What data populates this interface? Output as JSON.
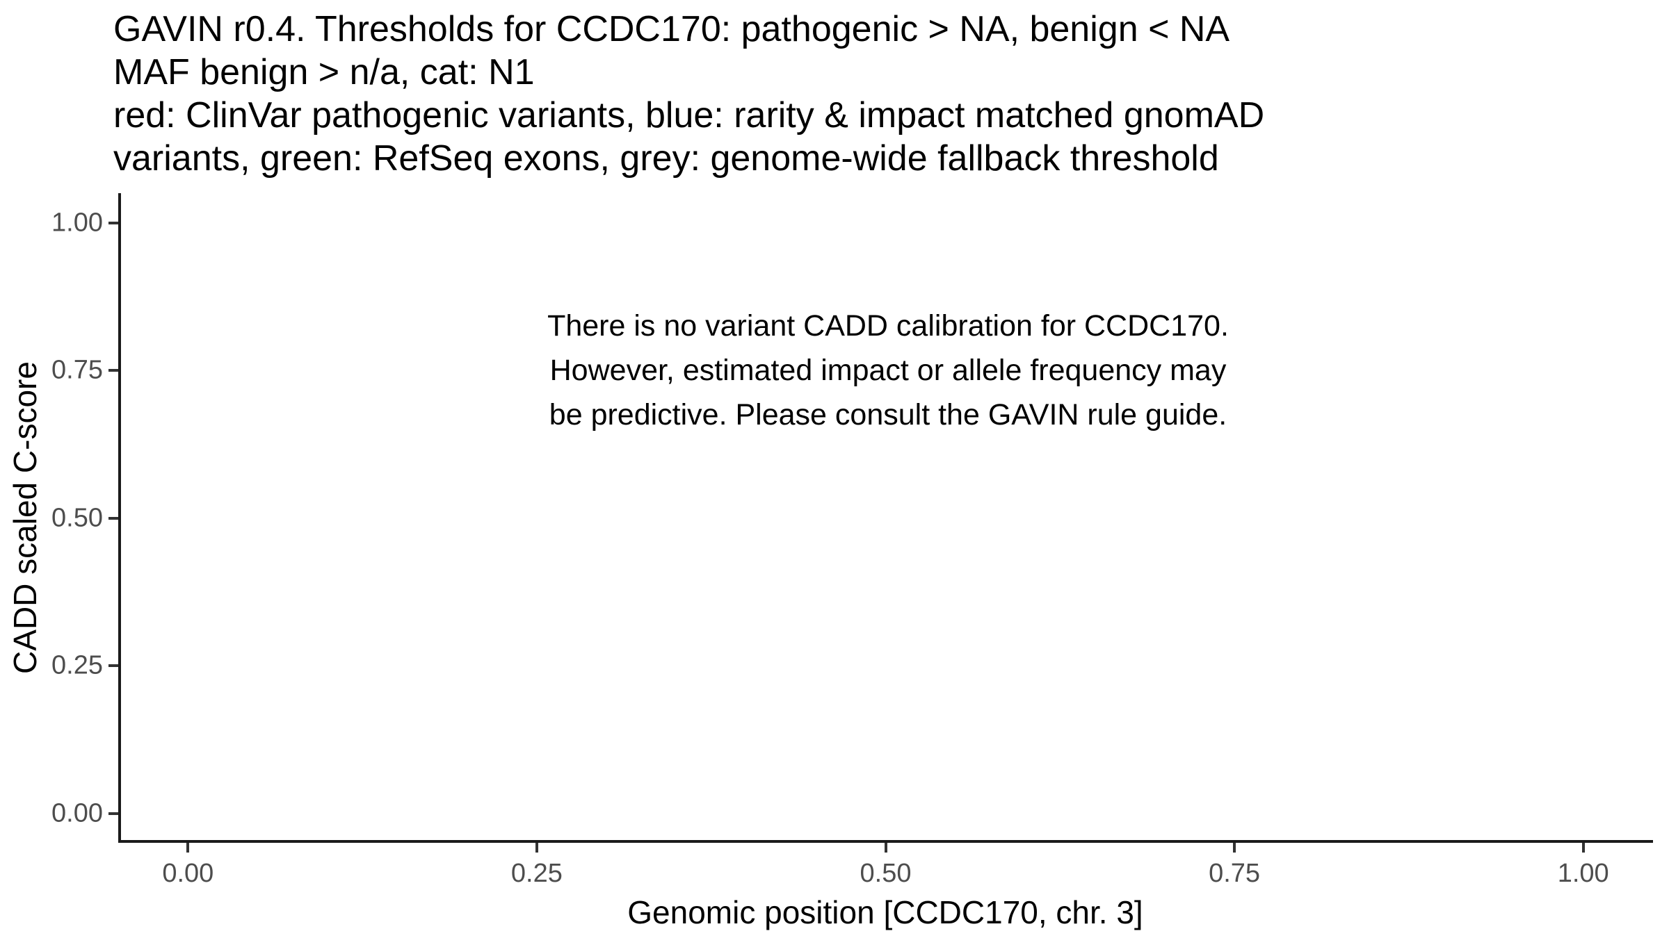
{
  "colors": {
    "background": "#ffffff",
    "text": "#000000",
    "axis_line": "#1a1a1a",
    "tick_mark": "#333333",
    "tick_label": "#4d4d4d"
  },
  "chart_data": {
    "type": "scatter",
    "title_lines": [
      "GAVIN r0.4. Thresholds for CCDC170: pathogenic > NA, benign < NA",
      "MAF benign > n/a, cat: N1",
      "red: ClinVar pathogenic variants, blue: rarity & impact matched gnomAD",
      "variants, green: RefSeq exons, grey: genome-wide fallback threshold"
    ],
    "xlabel": "Genomic position [CCDC170, chr. 3]",
    "ylabel": "CADD scaled C-score",
    "xlim": [
      0,
      1
    ],
    "ylim": [
      0,
      1
    ],
    "x_ticks": {
      "values": [
        0,
        0.25,
        0.5,
        0.75,
        1
      ],
      "labels": [
        "0.00",
        "0.25",
        "0.50",
        "0.75",
        "1.00"
      ]
    },
    "y_ticks": {
      "values": [
        0,
        0.25,
        0.5,
        0.75,
        1
      ],
      "labels": [
        "0.00",
        "0.25",
        "0.50",
        "0.75",
        "1.00"
      ]
    },
    "axis_expansion_mult": 0.05,
    "grid": false,
    "legend": false,
    "series": [],
    "annotation": {
      "x": 0.5,
      "y": 0.75,
      "lines": [
        "There is no variant CADD calibration for CCDC170.",
        "However, estimated impact or allele frequency may",
        "be predictive. Please consult the GAVIN rule guide."
      ]
    }
  }
}
